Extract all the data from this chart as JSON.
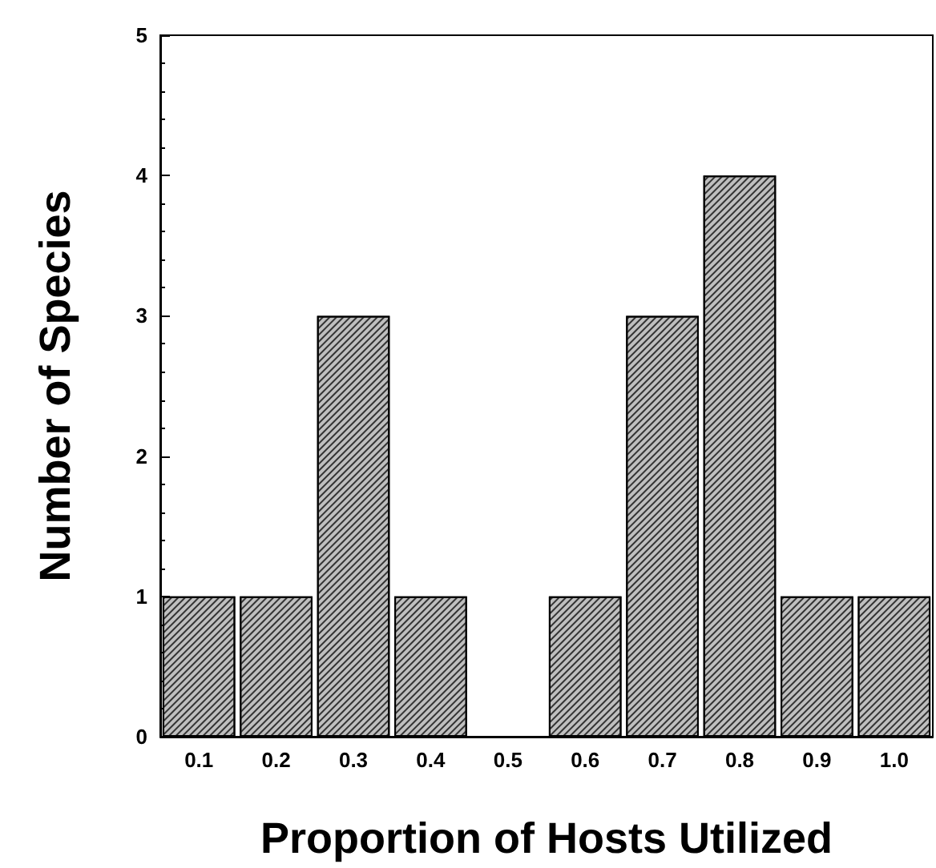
{
  "chart_data": {
    "type": "bar",
    "xlabel": "Proportion of Hosts Utilized",
    "ylabel": "Number of Species",
    "categories": [
      "0.1",
      "0.2",
      "0.3",
      "0.4",
      "0.5",
      "0.6",
      "0.7",
      "0.8",
      "0.9",
      "1.0"
    ],
    "values": [
      1,
      1,
      3,
      1,
      0,
      1,
      3,
      4,
      1,
      1
    ],
    "color": "#bfbfbf",
    "ylim": [
      0,
      5
    ],
    "yticks": [
      0,
      1,
      2,
      3,
      4,
      5
    ],
    "grid": false
  }
}
